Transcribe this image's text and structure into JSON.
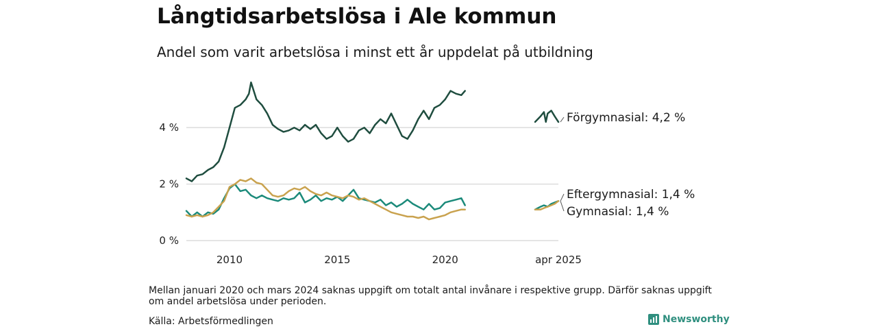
{
  "title": "Långtidsarbetslösa i Ale kommun",
  "subtitle": "Andel som varit arbetslösa i minst ett år uppdelat på utbildning",
  "note": "Mellan januari 2020 och mars 2024 saknas uppgift om totalt antal invånare i respektive grupp. Därför saknas uppgift om andel arbetslösa under perioden.",
  "source": "Källa: Arbetsförmedlingen",
  "brand": "Newsworthy",
  "chart_data": {
    "type": "line",
    "title": "Långtidsarbetslösa i Ale kommun",
    "subtitle": "Andel som varit arbetslösa i minst ett år uppdelat på utbildning",
    "xlabel": "",
    "ylabel": "",
    "ylim": [
      0,
      5.8
    ],
    "y_ticks": [
      {
        "value": 0,
        "label": "0 %"
      },
      {
        "value": 2,
        "label": "2 %"
      },
      {
        "value": 4,
        "label": "4 %"
      }
    ],
    "x_ticks": [
      {
        "value": 2010.0,
        "label": "2010"
      },
      {
        "value": 2015.0,
        "label": "2015"
      },
      {
        "value": 2020.0,
        "label": "2020"
      },
      {
        "value": 2025.25,
        "label": "apr 2025"
      }
    ],
    "x_range": [
      2008.0,
      2025.25
    ],
    "grid": "horizontal",
    "legend": "end-labels",
    "series": [
      {
        "name": "Förgymnasial",
        "end_label": "Förgymnasial: 4,2 %",
        "color": "#1f4d3f",
        "segments": [
          [
            [
              2008.0,
              2.2
            ],
            [
              2008.25,
              2.1
            ],
            [
              2008.5,
              2.3
            ],
            [
              2008.75,
              2.35
            ],
            [
              2009.0,
              2.5
            ],
            [
              2009.25,
              2.6
            ],
            [
              2009.5,
              2.8
            ],
            [
              2009.75,
              3.3
            ],
            [
              2010.0,
              4.0
            ],
            [
              2010.25,
              4.7
            ],
            [
              2010.5,
              4.8
            ],
            [
              2010.75,
              5.0
            ],
            [
              2010.9,
              5.2
            ],
            [
              2011.0,
              5.6
            ],
            [
              2011.25,
              5.0
            ],
            [
              2011.5,
              4.8
            ],
            [
              2011.75,
              4.5
            ],
            [
              2012.0,
              4.1
            ],
            [
              2012.25,
              3.95
            ],
            [
              2012.5,
              3.85
            ],
            [
              2012.75,
              3.9
            ],
            [
              2013.0,
              4.0
            ],
            [
              2013.25,
              3.9
            ],
            [
              2013.5,
              4.1
            ],
            [
              2013.75,
              3.95
            ],
            [
              2014.0,
              4.1
            ],
            [
              2014.25,
              3.8
            ],
            [
              2014.5,
              3.6
            ],
            [
              2014.75,
              3.7
            ],
            [
              2015.0,
              4.0
            ],
            [
              2015.25,
              3.7
            ],
            [
              2015.5,
              3.5
            ],
            [
              2015.75,
              3.6
            ],
            [
              2016.0,
              3.9
            ],
            [
              2016.25,
              4.0
            ],
            [
              2016.5,
              3.8
            ],
            [
              2016.75,
              4.1
            ],
            [
              2017.0,
              4.3
            ],
            [
              2017.25,
              4.15
            ],
            [
              2017.5,
              4.5
            ],
            [
              2017.75,
              4.1
            ],
            [
              2018.0,
              3.7
            ],
            [
              2018.25,
              3.6
            ],
            [
              2018.5,
              3.9
            ],
            [
              2018.75,
              4.3
            ],
            [
              2019.0,
              4.6
            ],
            [
              2019.25,
              4.3
            ],
            [
              2019.5,
              4.7
            ],
            [
              2019.75,
              4.8
            ],
            [
              2020.0,
              5.0
            ],
            [
              2020.25,
              5.3
            ],
            [
              2020.5,
              5.2
            ],
            [
              2020.75,
              5.15
            ],
            [
              2020.92,
              5.3
            ]
          ],
          [
            [
              2024.17,
              4.2
            ],
            [
              2024.42,
              4.4
            ],
            [
              2024.58,
              4.55
            ],
            [
              2024.67,
              4.2
            ],
            [
              2024.75,
              4.5
            ],
            [
              2024.92,
              4.6
            ],
            [
              2025.08,
              4.4
            ],
            [
              2025.25,
              4.2
            ]
          ]
        ]
      },
      {
        "name": "Eftergymnasial",
        "end_label": "Eftergymnasial: 1,4 %",
        "color": "#1b8a7a",
        "segments": [
          [
            [
              2008.0,
              1.05
            ],
            [
              2008.25,
              0.85
            ],
            [
              2008.5,
              1.0
            ],
            [
              2008.75,
              0.85
            ],
            [
              2009.0,
              1.0
            ],
            [
              2009.25,
              0.95
            ],
            [
              2009.5,
              1.1
            ],
            [
              2009.75,
              1.5
            ],
            [
              2010.0,
              1.85
            ],
            [
              2010.25,
              2.0
            ],
            [
              2010.5,
              1.75
            ],
            [
              2010.75,
              1.8
            ],
            [
              2011.0,
              1.6
            ],
            [
              2011.25,
              1.5
            ],
            [
              2011.5,
              1.6
            ],
            [
              2011.75,
              1.5
            ],
            [
              2012.0,
              1.45
            ],
            [
              2012.25,
              1.4
            ],
            [
              2012.5,
              1.5
            ],
            [
              2012.75,
              1.45
            ],
            [
              2013.0,
              1.5
            ],
            [
              2013.25,
              1.7
            ],
            [
              2013.5,
              1.35
            ],
            [
              2013.75,
              1.45
            ],
            [
              2014.0,
              1.6
            ],
            [
              2014.25,
              1.4
            ],
            [
              2014.5,
              1.5
            ],
            [
              2014.75,
              1.45
            ],
            [
              2015.0,
              1.55
            ],
            [
              2015.25,
              1.4
            ],
            [
              2015.5,
              1.6
            ],
            [
              2015.75,
              1.8
            ],
            [
              2016.0,
              1.5
            ],
            [
              2016.25,
              1.45
            ],
            [
              2016.5,
              1.4
            ],
            [
              2016.75,
              1.35
            ],
            [
              2017.0,
              1.45
            ],
            [
              2017.25,
              1.25
            ],
            [
              2017.5,
              1.35
            ],
            [
              2017.75,
              1.2
            ],
            [
              2018.0,
              1.3
            ],
            [
              2018.25,
              1.45
            ],
            [
              2018.5,
              1.3
            ],
            [
              2018.75,
              1.2
            ],
            [
              2019.0,
              1.1
            ],
            [
              2019.25,
              1.3
            ],
            [
              2019.5,
              1.1
            ],
            [
              2019.75,
              1.15
            ],
            [
              2020.0,
              1.35
            ],
            [
              2020.25,
              1.4
            ],
            [
              2020.5,
              1.45
            ],
            [
              2020.75,
              1.5
            ],
            [
              2020.92,
              1.25
            ]
          ],
          [
            [
              2024.17,
              1.1
            ],
            [
              2024.42,
              1.2
            ],
            [
              2024.58,
              1.25
            ],
            [
              2024.75,
              1.2
            ],
            [
              2024.92,
              1.3
            ],
            [
              2025.08,
              1.35
            ],
            [
              2025.25,
              1.4
            ]
          ]
        ]
      },
      {
        "name": "Gymnasial",
        "end_label": "Gymnasial: 1,4 %",
        "color": "#c9a24e",
        "segments": [
          [
            [
              2008.0,
              0.9
            ],
            [
              2008.25,
              0.85
            ],
            [
              2008.5,
              0.9
            ],
            [
              2008.75,
              0.85
            ],
            [
              2009.0,
              0.9
            ],
            [
              2009.25,
              1.0
            ],
            [
              2009.5,
              1.2
            ],
            [
              2009.75,
              1.4
            ],
            [
              2010.0,
              1.9
            ],
            [
              2010.25,
              2.0
            ],
            [
              2010.5,
              2.15
            ],
            [
              2010.75,
              2.1
            ],
            [
              2011.0,
              2.2
            ],
            [
              2011.25,
              2.05
            ],
            [
              2011.5,
              2.0
            ],
            [
              2011.75,
              1.8
            ],
            [
              2012.0,
              1.6
            ],
            [
              2012.25,
              1.55
            ],
            [
              2012.5,
              1.6
            ],
            [
              2012.75,
              1.75
            ],
            [
              2013.0,
              1.85
            ],
            [
              2013.25,
              1.8
            ],
            [
              2013.5,
              1.9
            ],
            [
              2013.75,
              1.75
            ],
            [
              2014.0,
              1.65
            ],
            [
              2014.25,
              1.6
            ],
            [
              2014.5,
              1.7
            ],
            [
              2014.75,
              1.6
            ],
            [
              2015.0,
              1.55
            ],
            [
              2015.25,
              1.5
            ],
            [
              2015.5,
              1.6
            ],
            [
              2015.75,
              1.55
            ],
            [
              2016.0,
              1.45
            ],
            [
              2016.25,
              1.5
            ],
            [
              2016.5,
              1.4
            ],
            [
              2016.75,
              1.3
            ],
            [
              2017.0,
              1.2
            ],
            [
              2017.25,
              1.1
            ],
            [
              2017.5,
              1.0
            ],
            [
              2017.75,
              0.95
            ],
            [
              2018.0,
              0.9
            ],
            [
              2018.25,
              0.85
            ],
            [
              2018.5,
              0.85
            ],
            [
              2018.75,
              0.8
            ],
            [
              2019.0,
              0.85
            ],
            [
              2019.25,
              0.75
            ],
            [
              2019.5,
              0.8
            ],
            [
              2019.75,
              0.85
            ],
            [
              2020.0,
              0.9
            ],
            [
              2020.25,
              1.0
            ],
            [
              2020.5,
              1.05
            ],
            [
              2020.75,
              1.1
            ],
            [
              2020.92,
              1.1
            ]
          ],
          [
            [
              2024.17,
              1.1
            ],
            [
              2024.42,
              1.1
            ],
            [
              2024.58,
              1.15
            ],
            [
              2024.75,
              1.2
            ],
            [
              2024.92,
              1.25
            ],
            [
              2025.08,
              1.3
            ],
            [
              2025.25,
              1.4
            ]
          ]
        ]
      }
    ]
  }
}
